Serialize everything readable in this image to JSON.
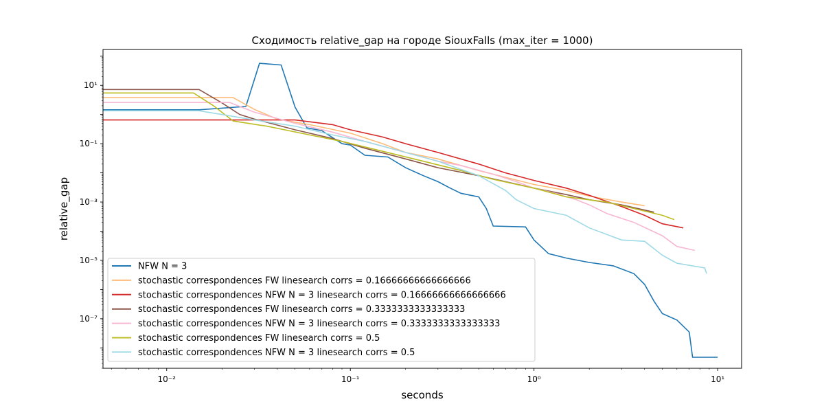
{
  "chart_data": {
    "type": "line",
    "title": "Сходимость relative_gap на городе SiouxFalls  (max_iter = 1000)",
    "xlabel": "seconds",
    "ylabel": "relative_gap",
    "xscale": "log",
    "yscale": "log",
    "xlim": [
      0.0045,
      13.5
    ],
    "ylim": [
      2e-09,
      170
    ],
    "grid": false,
    "legend_position": "lower-left",
    "x_ticks": [
      {
        "value": 0.01,
        "label": "10⁻²"
      },
      {
        "value": 0.1,
        "label": "10⁻¹"
      },
      {
        "value": 1,
        "label": "10⁰"
      },
      {
        "value": 10,
        "label": "10¹"
      }
    ],
    "y_ticks": [
      {
        "value": 1e-07,
        "label": "10⁻⁷"
      },
      {
        "value": 1e-05,
        "label": "10⁻⁵"
      },
      {
        "value": 0.001,
        "label": "10⁻³"
      },
      {
        "value": 0.1,
        "label": "10⁻¹"
      },
      {
        "value": 10,
        "label": "10¹"
      }
    ],
    "series": [
      {
        "name": "NFW N = 3",
        "color": "#1f77b4",
        "points": [
          [
            0.0045,
            1.45
          ],
          [
            0.015,
            1.45
          ],
          [
            0.027,
            1.9
          ],
          [
            0.032,
            57
          ],
          [
            0.042,
            50
          ],
          [
            0.05,
            1.8
          ],
          [
            0.058,
            0.35
          ],
          [
            0.07,
            0.28
          ],
          [
            0.09,
            0.1
          ],
          [
            0.1,
            0.09
          ],
          [
            0.12,
            0.04
          ],
          [
            0.16,
            0.035
          ],
          [
            0.2,
            0.015
          ],
          [
            0.25,
            0.008
          ],
          [
            0.3,
            0.005
          ],
          [
            0.35,
            0.003
          ],
          [
            0.4,
            0.002
          ],
          [
            0.5,
            0.0015
          ],
          [
            0.55,
            0.0006
          ],
          [
            0.6,
            0.00015
          ],
          [
            0.9,
            0.00014
          ],
          [
            1.0,
            5e-05
          ],
          [
            1.2,
            1.7e-05
          ],
          [
            1.5,
            1.2e-05
          ],
          [
            2.0,
            8.5e-06
          ],
          [
            2.7,
            6.5e-06
          ],
          [
            3.5,
            3.5e-06
          ],
          [
            4.0,
            1.5e-06
          ],
          [
            4.5,
            4e-07
          ],
          [
            5.0,
            1.5e-07
          ],
          [
            6.0,
            9e-08
          ],
          [
            7.0,
            3.5e-08
          ],
          [
            7.3,
            4.8e-09
          ],
          [
            10.0,
            4.8e-09
          ]
        ]
      },
      {
        "name": "stochastic correspondences FW linesearch corrs = 0.16666666666666666",
        "color": "#ffbb78",
        "points": [
          [
            0.0045,
            3.8
          ],
          [
            0.023,
            3.8
          ],
          [
            0.03,
            1.5
          ],
          [
            0.04,
            0.7
          ],
          [
            0.06,
            0.45
          ],
          [
            0.1,
            0.23
          ],
          [
            0.15,
            0.1
          ],
          [
            0.2,
            0.05
          ],
          [
            0.3,
            0.03
          ],
          [
            0.5,
            0.012
          ],
          [
            0.7,
            0.007
          ],
          [
            1.0,
            0.004
          ],
          [
            1.5,
            0.0025
          ],
          [
            2.0,
            0.0016
          ],
          [
            3.0,
            0.001
          ],
          [
            4.0,
            0.00075
          ]
        ]
      },
      {
        "name": "stochastic correspondences NFW N = 3 linesearch corrs = 0.16666666666666666",
        "color": "#d62728",
        "points": [
          [
            0.0045,
            0.65
          ],
          [
            0.05,
            0.65
          ],
          [
            0.08,
            0.45
          ],
          [
            0.1,
            0.3
          ],
          [
            0.15,
            0.17
          ],
          [
            0.2,
            0.1
          ],
          [
            0.3,
            0.05
          ],
          [
            0.5,
            0.02
          ],
          [
            0.7,
            0.01
          ],
          [
            1.0,
            0.0055
          ],
          [
            1.5,
            0.003
          ],
          [
            2.0,
            0.0017
          ],
          [
            3.0,
            0.0007
          ],
          [
            4.0,
            0.00035
          ],
          [
            5.0,
            0.00018
          ],
          [
            6.5,
            0.00013
          ]
        ]
      },
      {
        "name": "stochastic correspondences FW linesearch corrs = 0.3333333333333333",
        "color": "#8c564b",
        "points": [
          [
            0.0045,
            7.2
          ],
          [
            0.015,
            7.2
          ],
          [
            0.02,
            2.5
          ],
          [
            0.025,
            1.0
          ],
          [
            0.03,
            0.7
          ],
          [
            0.05,
            0.3
          ],
          [
            0.08,
            0.15
          ],
          [
            0.12,
            0.07
          ],
          [
            0.2,
            0.03
          ],
          [
            0.3,
            0.015
          ],
          [
            0.5,
            0.008
          ],
          [
            0.7,
            0.005
          ],
          [
            1.0,
            0.003
          ],
          [
            1.5,
            0.0018
          ],
          [
            2.0,
            0.0012
          ],
          [
            3.0,
            0.0008
          ],
          [
            4.5,
            0.00045
          ]
        ]
      },
      {
        "name": "stochastic correspondences NFW N = 3 linesearch corrs = 0.3333333333333333",
        "color": "#f7b6d2",
        "points": [
          [
            0.0045,
            2.6
          ],
          [
            0.022,
            2.6
          ],
          [
            0.03,
            1.2
          ],
          [
            0.05,
            0.5
          ],
          [
            0.08,
            0.25
          ],
          [
            0.12,
            0.12
          ],
          [
            0.2,
            0.05
          ],
          [
            0.3,
            0.025
          ],
          [
            0.4,
            0.018
          ],
          [
            0.6,
            0.009
          ],
          [
            0.8,
            0.005
          ],
          [
            1.0,
            0.003
          ],
          [
            1.3,
            0.002
          ],
          [
            1.7,
            0.0012
          ],
          [
            2.0,
            0.0008
          ],
          [
            2.5,
            0.0004
          ],
          [
            3.5,
            0.0002
          ],
          [
            5.0,
            7e-05
          ],
          [
            6.0,
            3e-05
          ],
          [
            7.5,
            2.2e-05
          ]
        ]
      },
      {
        "name": "stochastic correspondences FW linesearch corrs = 0.5",
        "color": "#bcbd22",
        "points": [
          [
            0.0045,
            5.5
          ],
          [
            0.014,
            5.5
          ],
          [
            0.018,
            2.0
          ],
          [
            0.023,
            0.6
          ],
          [
            0.035,
            0.4
          ],
          [
            0.06,
            0.2
          ],
          [
            0.09,
            0.12
          ],
          [
            0.15,
            0.055
          ],
          [
            0.25,
            0.025
          ],
          [
            0.4,
            0.012
          ],
          [
            0.6,
            0.006
          ],
          [
            1.0,
            0.003
          ],
          [
            1.5,
            0.0015
          ],
          [
            2.5,
            0.001
          ],
          [
            3.5,
            0.0006
          ],
          [
            5.0,
            0.00035
          ],
          [
            5.8,
            0.00025
          ]
        ]
      },
      {
        "name": "stochastic correspondences NFW N = 3 linesearch corrs = 0.5",
        "color": "#9edae5",
        "points": [
          [
            0.0045,
            1.35
          ],
          [
            0.015,
            1.35
          ],
          [
            0.02,
            1.0
          ],
          [
            0.03,
            0.65
          ],
          [
            0.05,
            0.4
          ],
          [
            0.08,
            0.2
          ],
          [
            0.12,
            0.12
          ],
          [
            0.2,
            0.05
          ],
          [
            0.3,
            0.025
          ],
          [
            0.5,
            0.008
          ],
          [
            0.7,
            0.0025
          ],
          [
            0.8,
            0.0012
          ],
          [
            1.0,
            0.0006
          ],
          [
            1.5,
            0.00035
          ],
          [
            2.0,
            0.00013
          ],
          [
            3.0,
            5e-05
          ],
          [
            4.0,
            4.5e-05
          ],
          [
            5.0,
            1.5e-05
          ],
          [
            6.0,
            8e-06
          ],
          [
            8.5,
            5.5e-06
          ],
          [
            8.7,
            3.5e-06
          ]
        ]
      }
    ]
  }
}
